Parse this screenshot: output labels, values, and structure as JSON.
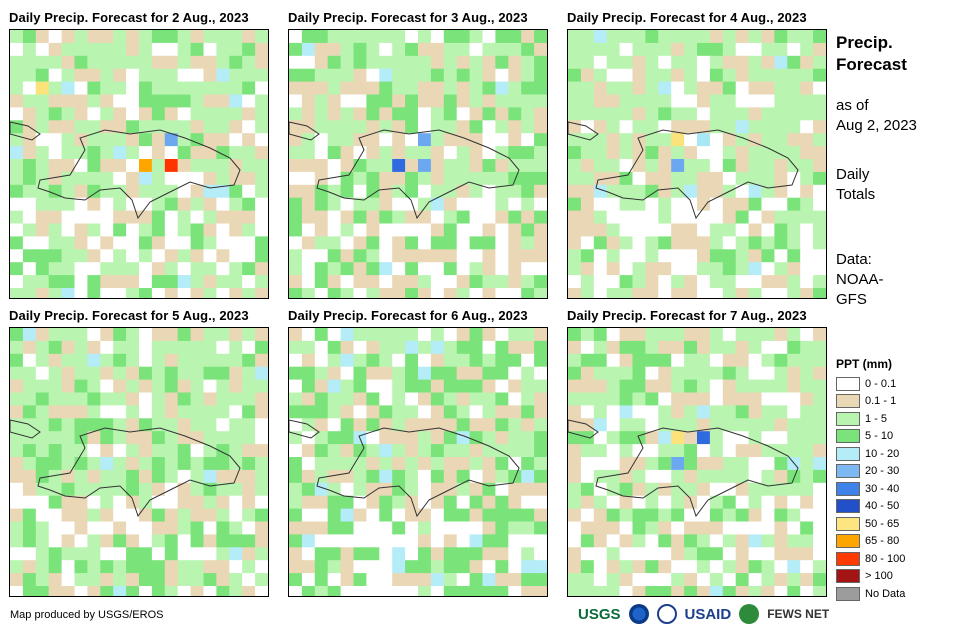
{
  "panels": [
    {
      "title": "Daily Precip. Forecast for 2 Aug., 2023",
      "seed": 11,
      "wet": 0.55,
      "hot": [
        [
          5,
          6,
          "#ff3300"
        ],
        [
          5,
          5,
          "#ffa500"
        ],
        [
          4,
          6,
          "#6ca8f0"
        ],
        [
          2,
          1,
          "#fce27a"
        ]
      ]
    },
    {
      "title": "Daily Precip. Forecast for 3 Aug., 2023",
      "seed": 23,
      "wet": 0.45,
      "hot": [
        [
          5,
          4,
          "#2f6ae0"
        ],
        [
          5,
          5,
          "#6ca8f0"
        ],
        [
          4,
          5,
          "#6ca8f0"
        ]
      ]
    },
    {
      "title": "Daily Precip. Forecast for 4 Aug., 2023",
      "seed": 37,
      "wet": 0.6,
      "hot": [
        [
          4,
          4,
          "#fce27a"
        ],
        [
          5,
          4,
          "#6ca8f0"
        ],
        [
          4,
          5,
          "#a8e8f5"
        ]
      ]
    },
    {
      "title": "Daily Precip. Forecast for 5 Aug., 2023",
      "seed": 41,
      "wet": 0.5,
      "hot": []
    },
    {
      "title": "Daily Precip. Forecast for 6 Aug., 2023",
      "seed": 53,
      "wet": 0.35,
      "hot": []
    },
    {
      "title": "Daily Precip. Forecast for 7 Aug., 2023",
      "seed": 67,
      "wet": 0.55,
      "hot": [
        [
          4,
          4,
          "#fce27a"
        ],
        [
          4,
          5,
          "#2f6ae0"
        ],
        [
          5,
          4,
          "#6ca8f0"
        ]
      ]
    }
  ],
  "side": {
    "title_line1": "Precip.",
    "title_line2": "Forecast",
    "asof_line1": "as of",
    "asof_line2": "Aug 2, 2023",
    "daily_line1": "Daily",
    "daily_line2": "Totals",
    "data_line1": "Data:",
    "data_line2": "NOAA-",
    "data_line3": "GFS"
  },
  "legend": {
    "title": "PPT (mm)",
    "items": [
      {
        "label": "0 - 0.1",
        "color": "#ffffff"
      },
      {
        "label": "0.1 - 1",
        "color": "#ead7b5"
      },
      {
        "label": "1 - 5",
        "color": "#b9f5b0"
      },
      {
        "label": "5 - 10",
        "color": "#7ae37a"
      },
      {
        "label": "10 - 20",
        "color": "#b4ecf7"
      },
      {
        "label": "20 - 30",
        "color": "#7eb8f2"
      },
      {
        "label": "30 - 40",
        "color": "#3f82e8"
      },
      {
        "label": "40 - 50",
        "color": "#2150c8"
      },
      {
        "label": "50 - 65",
        "color": "#fde682"
      },
      {
        "label": "65 - 80",
        "color": "#ffa500"
      },
      {
        "label": "80 - 100",
        "color": "#ff3a00"
      },
      {
        "label": "> 100",
        "color": "#a31515"
      },
      {
        "label": "No Data",
        "color": "#9c9c9c"
      }
    ]
  },
  "footer": {
    "credit": "Map produced by USGS/EROS",
    "logo_usgs": "USGS",
    "logo_usaid": "USAID",
    "logo_fews": "FEWS NET"
  }
}
